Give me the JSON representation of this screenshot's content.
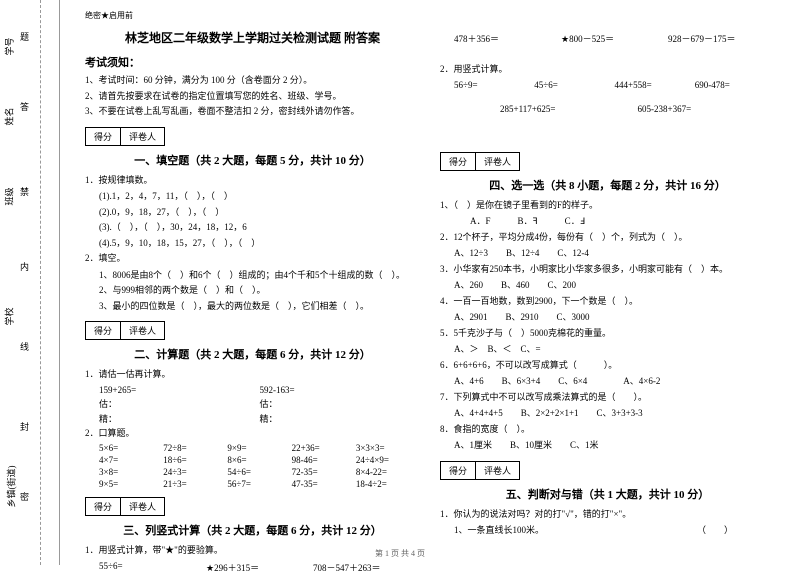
{
  "margin": {
    "l1": "学号",
    "l2": "姓名",
    "l3": "班级",
    "l4": "学校",
    "l5": "乡镇(街道)",
    "s1": "题",
    "s2": "答",
    "s3": "禁",
    "s4": "内",
    "s5": "线",
    "s6": "封",
    "s7": "密"
  },
  "header": {
    "secret": "绝密★启用前"
  },
  "title": "林芝地区二年级数学上学期过关检测试题 附答案",
  "notice": {
    "title": "考试须知：",
    "i1": "1、考试时间：60 分钟，满分为 100 分（含卷面分 2 分）。",
    "i2": "2、请首先按要求在试卷的指定位置填写您的姓名、班级、学号。",
    "i3": "3、不要在试卷上乱写乱画，卷面不整洁扣 2 分，密封线外请勿作答。"
  },
  "scorebox": {
    "c1": "得分",
    "c2": "评卷人"
  },
  "sec1": {
    "title": "一、填空题（共 2 大题，每题 5 分，共计 10 分）",
    "q1": "1．按规律填数。",
    "s1": "(1).1，2，4，7，11，（　），（　）",
    "s2": "(2).0，9，18，27，（　），（　）",
    "s3": "(3).（　），（　），30，24，18，12，6",
    "s4": "(4).5，9，10，18，15，27，（　），（　）",
    "q2": "2．填空。",
    "s5": "1、8006是由8个（　）和6个（　）组成的；由4个千和5个十组成的数（　）。",
    "s6": "2、与999相邻的两个数是（　）和（　）。",
    "s7": "3、最小的四位数是（　），最大的两位数是（　），它们相差（　）。"
  },
  "sec2": {
    "title": "二、计算题（共 2 大题，每题 6 分，共计 12 分）",
    "q1": "1．请估一估再计算。",
    "r1a": "159+265=",
    "r1b": "592-163=",
    "r2a": "估：",
    "r2b": "估：",
    "r3a": "精：",
    "r3b": "精：",
    "q2": "2．口算题。",
    "c": [
      [
        "5×6=",
        "72÷8=",
        "9×9=",
        "22+36=",
        "3×3×3="
      ],
      [
        "4×7=",
        "18÷6=",
        "8×6=",
        "98-46=",
        "24÷4×9="
      ],
      [
        "3×8=",
        "24÷3=",
        "54÷6=",
        "72-35=",
        "8×4-22="
      ],
      [
        "9×5=",
        "21÷3=",
        "56÷7=",
        "47-35=",
        "18-4÷2="
      ]
    ]
  },
  "sec3": {
    "title": "三、列竖式计算（共 2 大题，每题 6 分，共计 12 分）",
    "q1": "1．用竖式计算，带\"★\"的要验算。",
    "r1": [
      "55÷6=",
      "★296＋315＝",
      "708－547＋263＝"
    ],
    "r2": [
      "478＋356＝",
      "★800－525＝",
      "928－679－175＝"
    ],
    "q2": "2．用竖式计算。",
    "r3": [
      "56÷9=",
      "45÷6=",
      "444+558=",
      "690-478="
    ],
    "r4": [
      "285+117+625=",
      "605-238+367="
    ]
  },
  "sec4": {
    "title": "四、选一选（共 8 小题，每题 2 分，共计 16 分）",
    "q1": "1、（　）是你在镜子里看到的F的样子。",
    "o1": "A．F　　　B．ꟻ　　　C．Ⅎ",
    "q2": "2．12个杯子，平均分成4份，每份有（　）个，列式为（　）。",
    "o2": "A、12÷3　　B、12÷4　　C、12-4",
    "q3": "3．小华家有250本书，小明家比小华家多很多，小明家可能有（　）本。",
    "o3": "A、260　　B、460　　C、200",
    "q4": "4．一百一百地数，数到2900，下一个数是（　）。",
    "o4": "A、2901　　B、2910　　C、3000",
    "q5": "5．5千克沙子与（　）5000克棉花的重量。",
    "o5": "A、＞　B、＜　C、=",
    "q6": "6．6+6+6+6，不可以改写成算式（　　　）。",
    "o6": "A、4+6　　B、6×3+4　　C、6×4　　　　A、4×6-2",
    "q7": "7．下列算式中不可以改写成乘法算式的是（　　）。",
    "o7": "A、4+4+4+5　　B、2×2+2×1+1　　C、3+3+3-3",
    "q8": "8．食指的宽度（　）。",
    "o8": "A、1厘米　　B、10厘米　　C、1米"
  },
  "sec5": {
    "title": "五、判断对与错（共 1 大题，共计 10 分）",
    "q1": "1．你认为的说法对吗？对的打\"√\"，错的打\"×\"。",
    "s1": "1、一条直线长100米。　　　　　　　　　　　　　　　　　　（　　）"
  },
  "footer": "第 1 页 共 4 页"
}
